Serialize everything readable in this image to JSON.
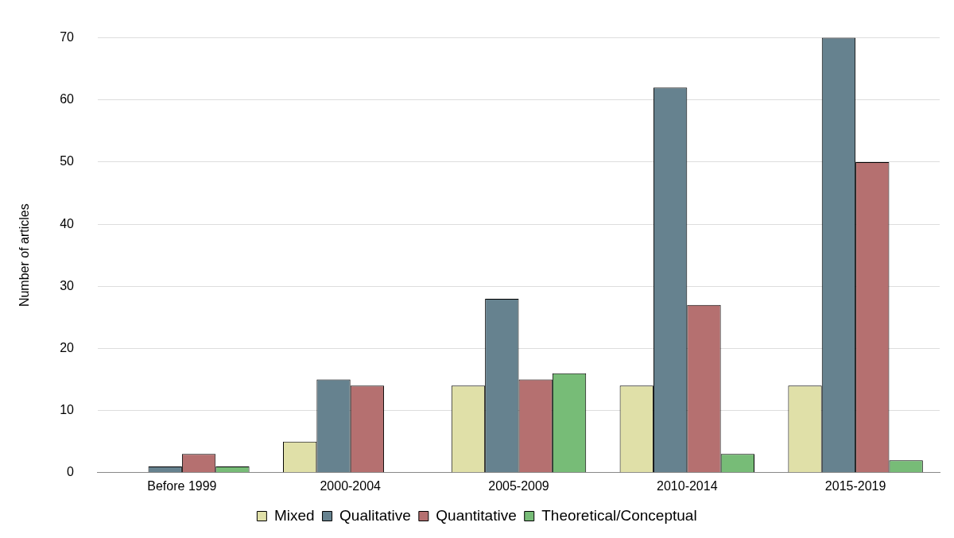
{
  "chart_data": {
    "type": "bar",
    "ylabel": "Number of articles",
    "categories": [
      "Before 1999",
      "2000-2004",
      "2005-2009",
      "2010-2014",
      "2015-2019"
    ],
    "series": [
      {
        "name": "Mixed",
        "color": "#e0e0a8",
        "values": [
          0,
          5,
          14,
          14,
          14
        ]
      },
      {
        "name": "Qualitative",
        "color": "#66828f",
        "values": [
          1,
          15,
          28,
          62,
          70
        ]
      },
      {
        "name": "Quantitative",
        "color": "#b57070",
        "values": [
          3,
          14,
          15,
          27,
          50
        ]
      },
      {
        "name": "Theoretical/Conceptual",
        "color": "#77bc77",
        "values": [
          1,
          0,
          16,
          3,
          2
        ]
      }
    ],
    "ylim": [
      0,
      70
    ],
    "yticks": [
      0,
      10,
      20,
      30,
      40,
      50,
      60,
      70
    ],
    "grid": "y",
    "legend": "bottom"
  }
}
